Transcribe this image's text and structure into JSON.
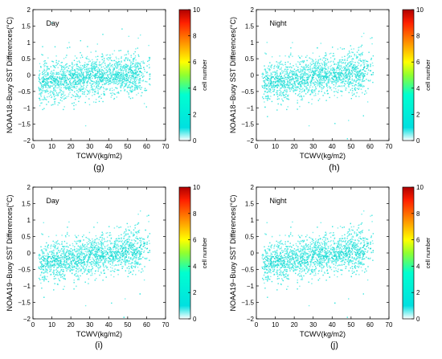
{
  "chart_data": [
    {
      "type": "scatter",
      "panel_label": "(g)",
      "annotation": "Day",
      "xlabel": "TCWV(kg/m2)",
      "ylabel": "NOAA18−Buoy SST Differences(°C)",
      "xlim": [
        0,
        70
      ],
      "ylim": [
        -2,
        2
      ],
      "xticks": [
        "0",
        "10",
        "20",
        "30",
        "40",
        "50",
        "60",
        "70"
      ],
      "yticks": [
        "−2",
        "−1.5",
        "−1",
        "−0.5",
        "0",
        "0.5",
        "1",
        "1.5",
        "2"
      ],
      "colorbar": {
        "label": "cell number",
        "min": 0,
        "max": 10,
        "ticks": [
          "0",
          "2",
          "4",
          "6",
          "8",
          "10"
        ]
      },
      "density_trend": {
        "x": [
          3,
          10,
          20,
          30,
          40,
          50,
          57
        ],
        "y_mean": [
          -0.25,
          -0.2,
          -0.15,
          -0.05,
          0.0,
          0.0,
          0.05
        ],
        "y_spread": 0.3,
        "point_count": 1800
      }
    },
    {
      "type": "scatter",
      "panel_label": "(h)",
      "annotation": "Night",
      "xlabel": "TCWV(kg/m2)",
      "ylabel": "NOAA18−Buoy SST Differences(°C)",
      "xlim": [
        0,
        70
      ],
      "ylim": [
        -2,
        2
      ],
      "xticks": [
        "0",
        "10",
        "20",
        "30",
        "40",
        "50",
        "60",
        "70"
      ],
      "yticks": [
        "−2",
        "−1.5",
        "−1",
        "−0.5",
        "0",
        "0.5",
        "1",
        "1.5",
        "2"
      ],
      "colorbar": {
        "label": "cell number",
        "min": 0,
        "max": 10,
        "ticks": [
          "0",
          "2",
          "4",
          "6",
          "8",
          "10"
        ]
      },
      "density_trend": {
        "x": [
          3,
          10,
          20,
          30,
          40,
          50,
          57
        ],
        "y_mean": [
          -0.2,
          -0.2,
          -0.15,
          -0.05,
          0.05,
          0.05,
          0.1
        ],
        "y_spread": 0.3,
        "point_count": 1700
      }
    },
    {
      "type": "scatter",
      "panel_label": "(i)",
      "annotation": "Day",
      "xlabel": "TCWV(kg/m2)",
      "ylabel": "NOAA19−Buoy SST Differences(°C)",
      "xlim": [
        0,
        70
      ],
      "ylim": [
        -2,
        2
      ],
      "xticks": [
        "0",
        "10",
        "20",
        "30",
        "40",
        "50",
        "60",
        "70"
      ],
      "yticks": [
        "−2",
        "−1.5",
        "−1",
        "−0.5",
        "0",
        "0.5",
        "1",
        "1.5",
        "2"
      ],
      "colorbar": {
        "label": "cell number",
        "min": 0,
        "max": 10,
        "ticks": [
          "0",
          "2",
          "4",
          "6",
          "8",
          "10"
        ]
      },
      "density_trend": {
        "x": [
          3,
          10,
          20,
          30,
          40,
          50,
          57
        ],
        "y_mean": [
          -0.3,
          -0.25,
          -0.2,
          -0.1,
          0.0,
          0.05,
          0.1
        ],
        "y_spread": 0.3,
        "point_count": 1900
      }
    },
    {
      "type": "scatter",
      "panel_label": "(j)",
      "annotation": "Night",
      "xlabel": "TCWV(kg/m2)",
      "ylabel": "NOAA19−Buoy SST Differences(°C)",
      "xlim": [
        0,
        70
      ],
      "ylim": [
        -2,
        2
      ],
      "xticks": [
        "0",
        "10",
        "20",
        "30",
        "40",
        "50",
        "60",
        "70"
      ],
      "yticks": [
        "−2",
        "−1.5",
        "−1",
        "−0.5",
        "0",
        "0.5",
        "1",
        "1.5",
        "2"
      ],
      "colorbar": {
        "label": "cell number",
        "min": 0,
        "max": 10,
        "ticks": [
          "0",
          "2",
          "4",
          "6",
          "8",
          "10"
        ]
      },
      "density_trend": {
        "x": [
          3,
          10,
          20,
          30,
          40,
          50,
          57
        ],
        "y_mean": [
          -0.3,
          -0.25,
          -0.2,
          -0.1,
          0.0,
          0.05,
          0.1
        ],
        "y_spread": 0.3,
        "point_count": 1900
      }
    }
  ]
}
